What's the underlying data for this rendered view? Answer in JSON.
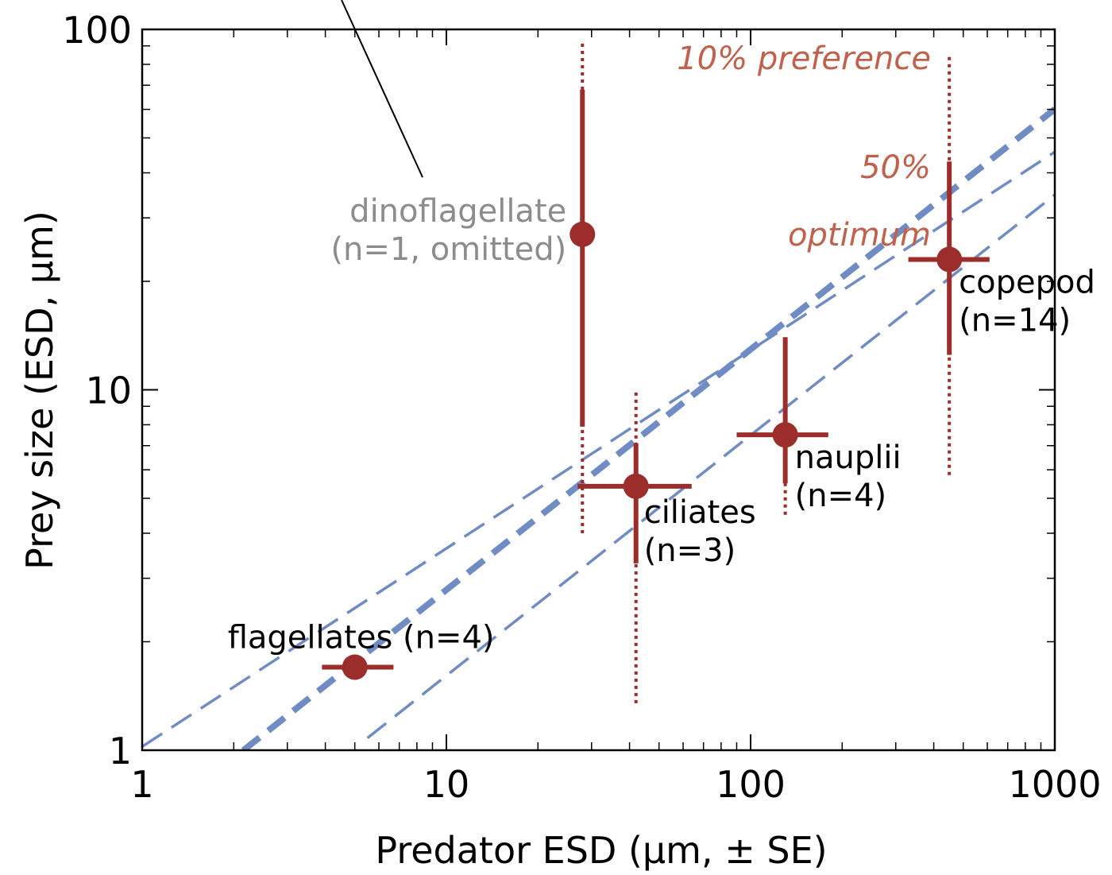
{
  "chart_data": {
    "type": "scatter",
    "xlabel": "Predator ESD (μm, ± SE)",
    "ylabel": "Prey size (ESD, μm)",
    "xscale": "log",
    "yscale": "log",
    "xlim": [
      1,
      1000
    ],
    "ylim": [
      1,
      100
    ],
    "x_ticks": [
      "1",
      "10",
      "100",
      "1000"
    ],
    "y_ticks": [
      "1",
      "10",
      "100"
    ],
    "colors": {
      "points": "#9b2d2a",
      "lines": "#6f8cc4",
      "range_label": "#c0614c",
      "omitted_label": "#8c8c8c"
    },
    "points": [
      {
        "name": "flagellates",
        "label": "flagellates (n=4)",
        "x": 5,
        "y": 1.7,
        "x_err": [
          3.9,
          6.7
        ],
        "y_err": null,
        "range10": null
      },
      {
        "name": "dinoflagellate",
        "label1": "dinoflagellate",
        "label2": "(n=1, omitted)",
        "omitted": true,
        "x": 28,
        "y": 27,
        "x_err": null,
        "y_err": [
          7.9,
          68
        ],
        "range10": [
          4.0,
          93
        ]
      },
      {
        "name": "ciliates",
        "label1": "ciliates",
        "label2": "(n=3)",
        "x": 42,
        "y": 5.4,
        "x_err": [
          27,
          64
        ],
        "y_err": [
          3.3,
          7.1
        ],
        "range10": [
          1.35,
          10
        ]
      },
      {
        "name": "nauplii",
        "label1": "nauplii",
        "label2": "(n=4)",
        "x": 130,
        "y": 7.5,
        "x_err": [
          90,
          180
        ],
        "y_err": [
          5.5,
          14
        ],
        "range10": [
          4.5,
          14
        ]
      },
      {
        "name": "copepod",
        "label1": "copepod",
        "label2": "(n=14)",
        "x": 450,
        "y": 23,
        "x_err": [
          330,
          610
        ],
        "y_err": [
          12.5,
          43
        ],
        "range10": [
          5.8,
          85
        ]
      }
    ],
    "reference_lines": [
      {
        "role": "optimum",
        "style": "thick-dashed",
        "slope": 0.667,
        "intercept": -0.222,
        "x_range": [
          2.15,
          1000
        ]
      },
      {
        "role": "upper",
        "style": "thin-dashed",
        "slope": 0.55,
        "intercept": 0.01,
        "x_range": [
          1,
          1000
        ]
      },
      {
        "role": "lower",
        "style": "thin-dashed",
        "slope": 0.667,
        "intercept": -0.46,
        "x_range": [
          5.5,
          1000
        ]
      }
    ],
    "annotations": {
      "pref10": "10% preference",
      "pref50": "50%",
      "optimum": "optimum"
    }
  }
}
